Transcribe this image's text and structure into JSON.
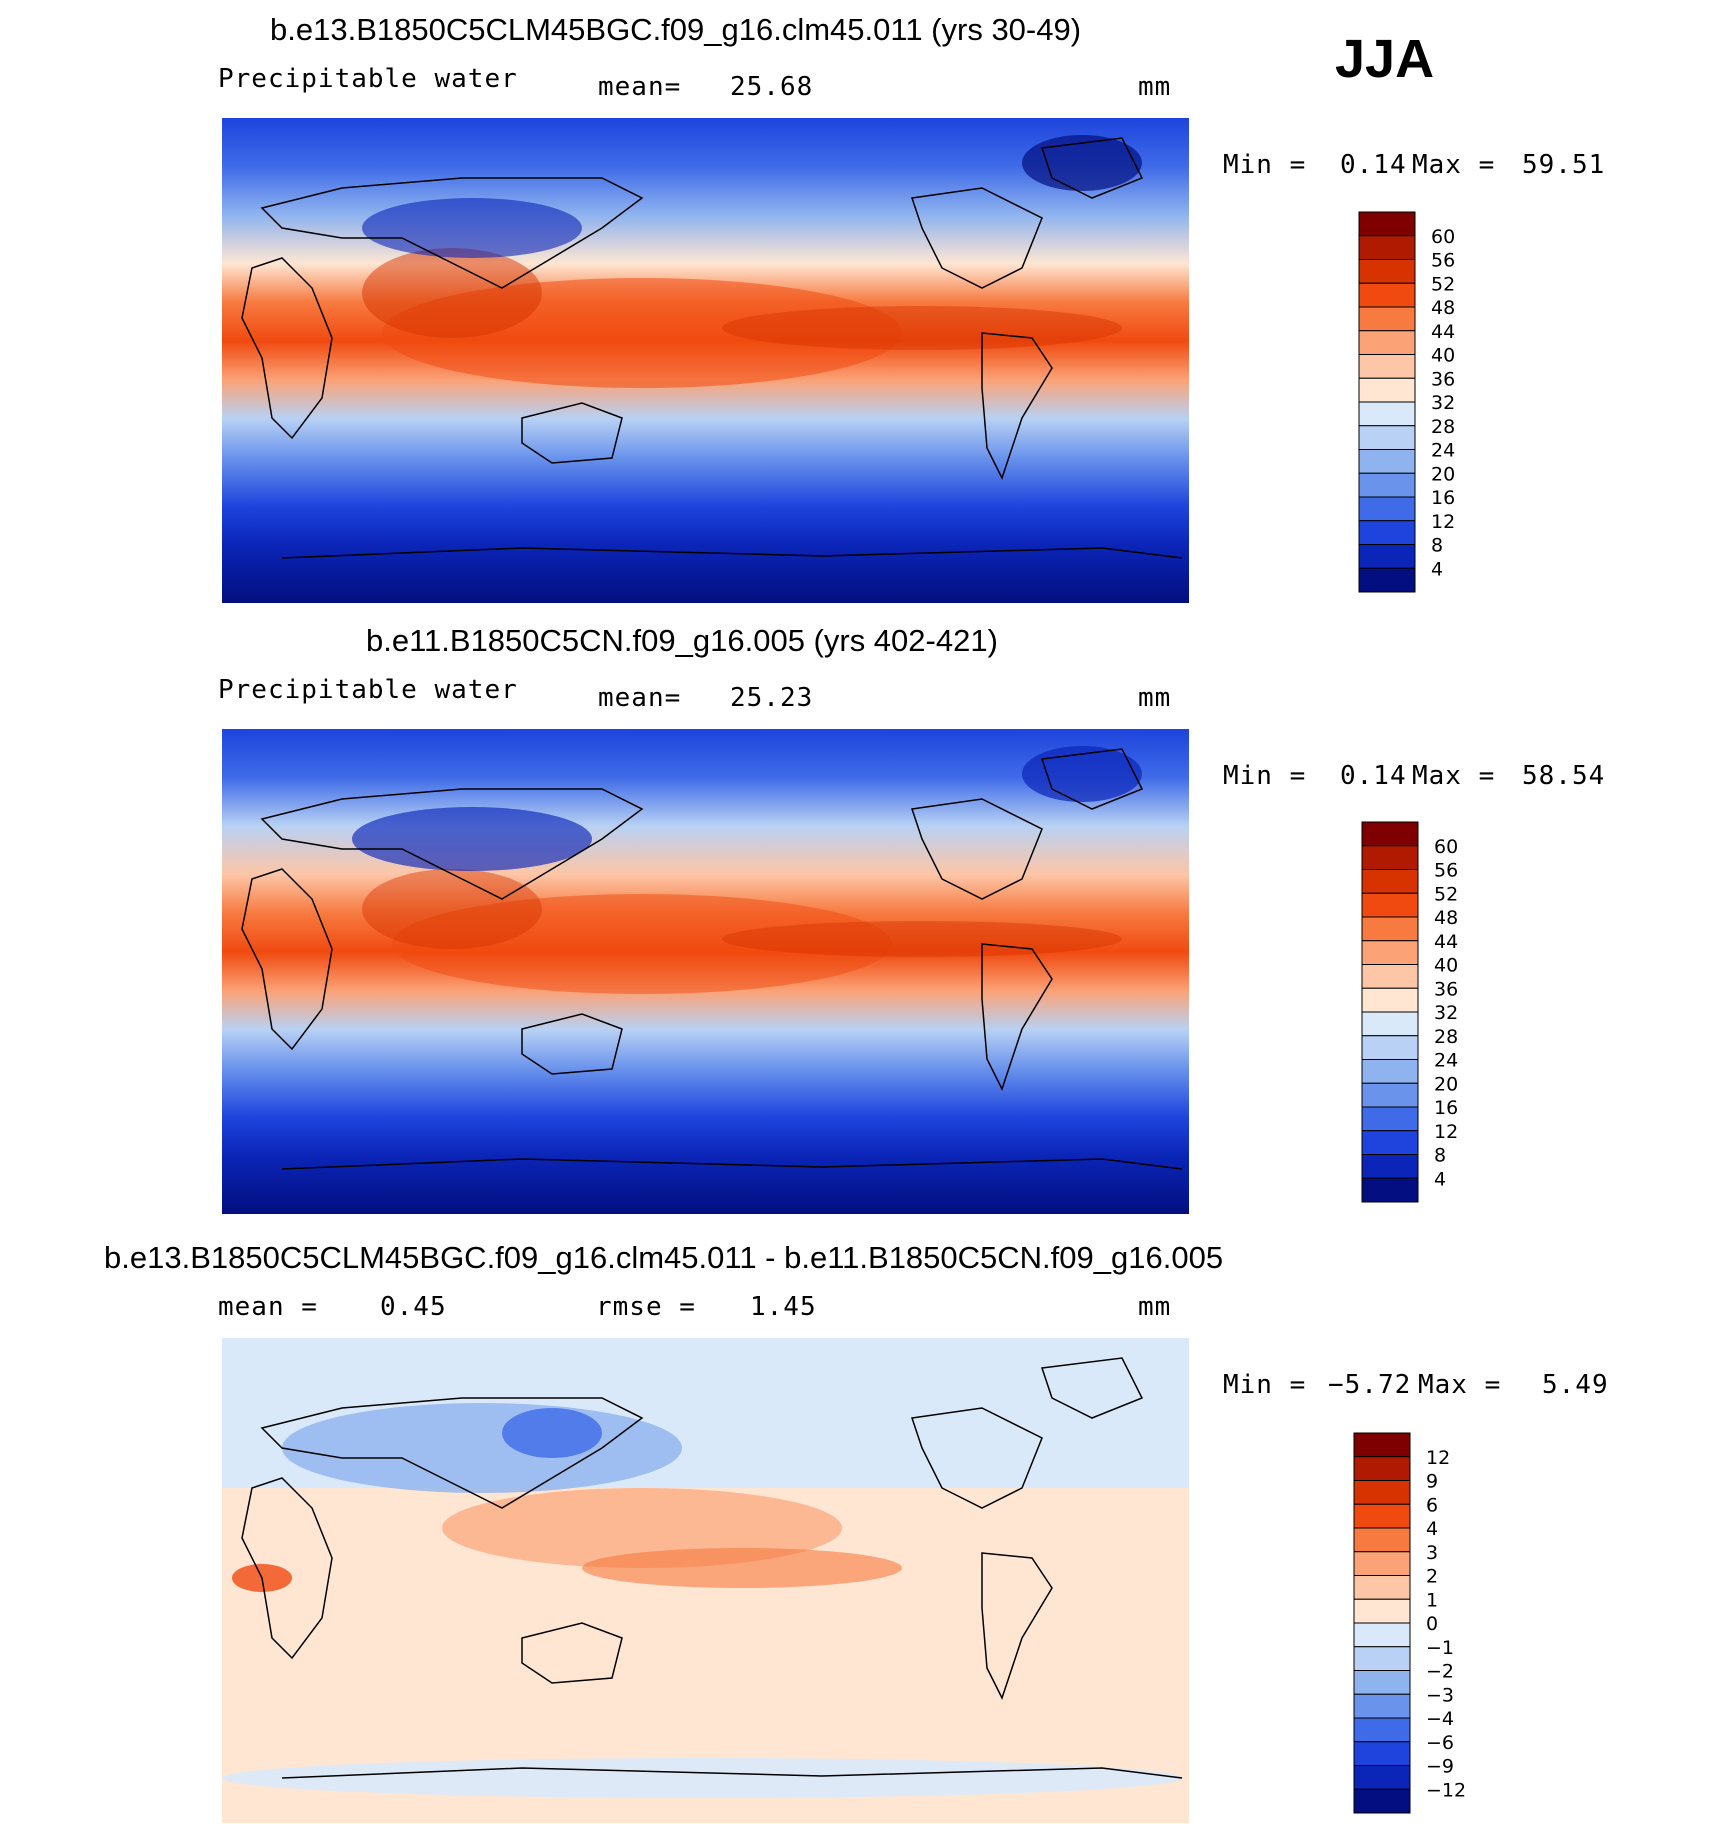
{
  "season": "JJA",
  "panels": [
    {
      "id": "top",
      "title": "b.e13.B1850C5CLM45BGC.f09_g16.clm45.011 (yrs 30-49)",
      "variable": "Precipitable water",
      "stat_label": "mean=",
      "stat_value": "25.68",
      "unit": "mm",
      "min_label": "Min =",
      "min_value": "0.14",
      "max_label": "Max =",
      "max_value": "59.51",
      "colorbar": {
        "labels": [
          "60",
          "56",
          "52",
          "48",
          "44",
          "40",
          "36",
          "32",
          "28",
          "24",
          "20",
          "16",
          "12",
          "8",
          "4"
        ],
        "colors": [
          "#7f0000",
          "#b01a00",
          "#d63300",
          "#f04a10",
          "#f77a40",
          "#fba277",
          "#fdc6a6",
          "#fee6d3",
          "#d9e9f9",
          "#b8d1f4",
          "#8fb3ef",
          "#6a93ec",
          "#3f6be8",
          "#1e44dd",
          "#0b25b8",
          "#030f80"
        ]
      }
    },
    {
      "id": "middle",
      "title": "b.e11.B1850C5CN.f09_g16.005 (yrs 402-421)",
      "variable": "Precipitable water",
      "stat_label": "mean=",
      "stat_value": "25.23",
      "unit": "mm",
      "min_label": "Min =",
      "min_value": "0.14",
      "max_label": "Max =",
      "max_value": "58.54",
      "colorbar": {
        "labels": [
          "60",
          "56",
          "52",
          "48",
          "44",
          "40",
          "36",
          "32",
          "28",
          "24",
          "20",
          "16",
          "12",
          "8",
          "4"
        ],
        "colors": [
          "#7f0000",
          "#b01a00",
          "#d63300",
          "#f04a10",
          "#f77a40",
          "#fba277",
          "#fdc6a6",
          "#fee6d3",
          "#d9e9f9",
          "#b8d1f4",
          "#8fb3ef",
          "#6a93ec",
          "#3f6be8",
          "#1e44dd",
          "#0b25b8",
          "#030f80"
        ]
      }
    },
    {
      "id": "bottom",
      "title": "b.e13.B1850C5CLM45BGC.f09_g16.clm45.011 - b.e11.B1850C5CN.f09_g16.005",
      "stat_label": "mean =",
      "stat_value": "0.45",
      "stat2_label": "rmse =",
      "stat2_value": "1.45",
      "unit": "mm",
      "min_label": "Min =",
      "min_value": "−5.72",
      "max_label": "Max =",
      "max_value": "5.49",
      "colorbar": {
        "labels": [
          "12",
          "9",
          "6",
          "4",
          "3",
          "2",
          "1",
          "0",
          "−1",
          "−2",
          "−3",
          "−4",
          "−6",
          "−9",
          "−12"
        ],
        "colors": [
          "#7f0000",
          "#b01a00",
          "#d63300",
          "#f04a10",
          "#f77a40",
          "#fba277",
          "#fdc6a6",
          "#fee6d3",
          "#d9e9f9",
          "#b8d1f4",
          "#8fb3ef",
          "#6a93ec",
          "#3f6be8",
          "#1e44dd",
          "#0b25b8",
          "#030f80"
        ]
      }
    }
  ]
}
